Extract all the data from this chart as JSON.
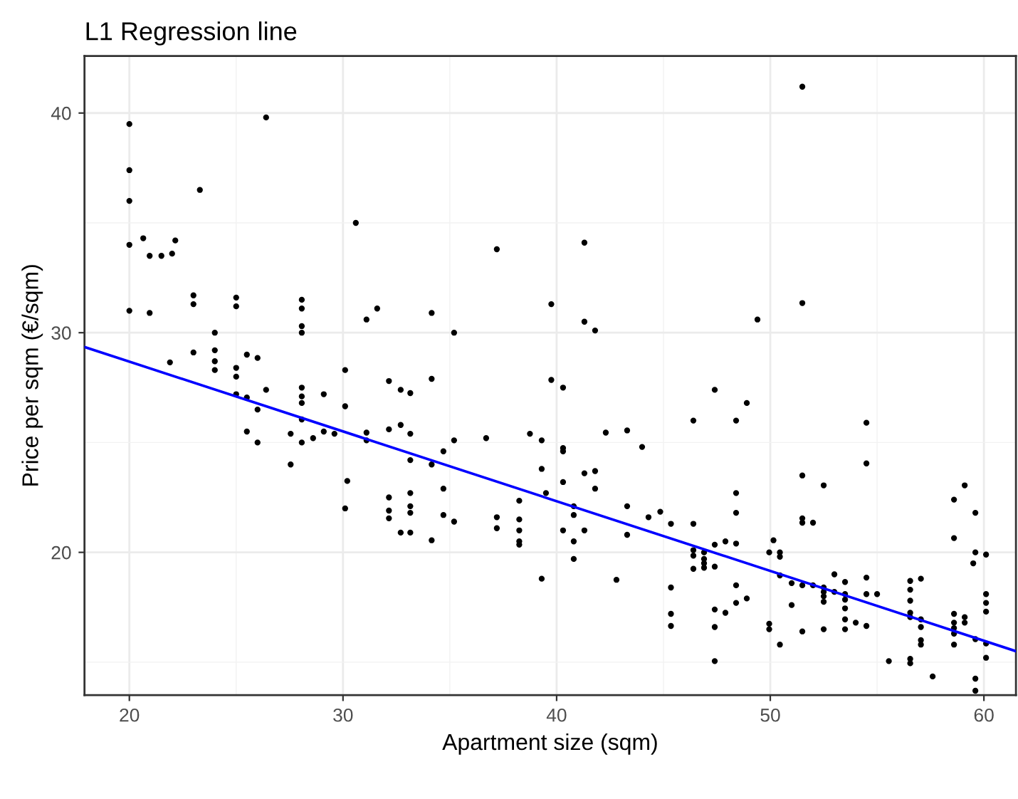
{
  "chart_data": {
    "type": "scatter",
    "title": "L1 Regression line",
    "xlabel": "Apartment size (sqm)",
    "ylabel": "Price per sqm (€/sqm)",
    "xlim": [
      17.9,
      61.5
    ],
    "ylim": [
      13.5,
      42.6
    ],
    "xticks": [
      20,
      30,
      40,
      50,
      60
    ],
    "yticks": [
      20,
      30,
      40
    ],
    "grid": true,
    "series": [
      {
        "marker": "circle",
        "color": "#000000",
        "x": [
          20,
          20,
          20,
          20,
          20,
          20.65,
          20.95,
          20.95,
          21.5,
          22.0,
          22.15,
          21.9,
          23.0,
          23.0,
          23.0,
          23.3,
          24.0,
          24.0,
          24.0,
          24.0,
          25.0,
          25.0,
          25.0,
          25.0,
          25.0,
          25.5,
          25.5,
          25.5,
          26.0,
          26.0,
          26.0,
          26.4,
          26.4,
          27.55,
          27.55,
          28.07,
          28.07,
          28.07,
          28.07,
          28.07,
          28.07,
          28.07,
          28.07,
          28.07,
          28.6,
          29.1,
          29.1,
          29.6,
          30.1,
          30.1,
          30.2,
          30.1,
          30.6,
          31.1,
          31.1,
          31.1,
          31.6,
          32.15,
          32.15,
          32.15,
          32.15,
          32.15,
          32.7,
          32.7,
          32.7,
          33.15,
          33.15,
          33.15,
          33.15,
          33.15,
          33.15,
          33.15,
          34.15,
          34.15,
          34.15,
          34.15,
          34.7,
          34.7,
          34.7,
          35.2,
          35.2,
          35.2,
          36.7,
          37.2,
          37.2,
          37.2,
          38.25,
          38.25,
          38.25,
          38.25,
          38.25,
          38.75,
          39.3,
          39.3,
          39.3,
          39.5,
          39.75,
          39.75,
          40.3,
          40.3,
          40.3,
          40.3,
          40.3,
          40.8,
          40.8,
          40.8,
          40.8,
          41.3,
          41.3,
          41.3,
          41.3,
          41.8,
          41.8,
          41.8,
          42.3,
          42.8,
          43.3,
          43.3,
          43.3,
          44.0,
          44.3,
          44.85,
          45.35,
          45.35,
          45.35,
          45.35,
          46.4,
          46.4,
          46.4,
          46.4,
          46.4,
          46.9,
          46.9,
          46.9,
          46.9,
          47.4,
          47.4,
          47.4,
          47.4,
          47.4,
          47.4,
          47.9,
          47.9,
          48.4,
          48.4,
          48.4,
          48.4,
          48.4,
          48.4,
          48.9,
          48.9,
          49.4,
          49.95,
          49.95,
          49.95,
          50.15,
          50.45,
          50.45,
          50.45,
          50.45,
          51.0,
          51.0,
          51.5,
          51.5,
          51.5,
          51.5,
          51.5,
          51.5,
          51.5,
          52.0,
          52.0,
          52.5,
          52.5,
          52.5,
          52.5,
          52.5,
          52.5,
          53.0,
          53.0,
          53.5,
          53.5,
          53.5,
          53.5,
          53.5,
          53.5,
          54.0,
          54.5,
          54.5,
          54.5,
          54.5,
          54.5,
          55.0,
          55.55,
          56.55,
          56.55,
          56.55,
          56.55,
          56.55,
          56.55,
          56.55,
          57.05,
          57.05,
          57.05,
          57.05,
          57.05,
          57.6,
          58.6,
          58.6,
          58.6,
          58.6,
          58.6,
          58.6,
          58.6,
          59.1,
          59.1,
          59.1,
          59.5,
          59.6,
          59.6,
          59.6,
          59.6,
          59.6,
          60.1,
          60.1,
          60.1,
          60.1,
          60.1,
          60.1
        ],
        "values": [
          39.5,
          37.4,
          36.0,
          34.0,
          31.0,
          34.3,
          33.5,
          30.9,
          33.5,
          33.6,
          34.2,
          28.65,
          31.7,
          31.3,
          29.1,
          36.5,
          30.0,
          29.2,
          28.7,
          28.3,
          31.6,
          31.2,
          28.4,
          28.0,
          27.2,
          29.0,
          27.05,
          25.5,
          28.85,
          26.5,
          25.0,
          27.4,
          39.8,
          25.4,
          24.0,
          31.5,
          31.1,
          30.3,
          30.0,
          27.5,
          27.1,
          26.8,
          26.05,
          25.0,
          25.2,
          27.2,
          25.5,
          25.4,
          28.3,
          26.65,
          23.25,
          22.0,
          35.0,
          30.6,
          25.45,
          25.1,
          31.1,
          27.8,
          25.6,
          22.5,
          21.9,
          21.55,
          27.4,
          25.8,
          20.9,
          27.25,
          25.4,
          24.2,
          22.7,
          22.1,
          21.8,
          20.9,
          30.9,
          27.9,
          24.0,
          20.55,
          24.6,
          22.9,
          21.7,
          30.0,
          25.1,
          21.4,
          25.2,
          33.8,
          21.6,
          21.1,
          22.35,
          21.5,
          21.0,
          20.5,
          20.35,
          25.4,
          25.1,
          23.8,
          18.8,
          22.7,
          31.3,
          27.85,
          27.5,
          24.75,
          24.6,
          23.2,
          21.0,
          22.1,
          21.7,
          20.5,
          19.7,
          34.1,
          30.5,
          23.6,
          21.0,
          30.1,
          23.7,
          22.9,
          25.45,
          18.75,
          25.55,
          22.1,
          20.8,
          24.8,
          21.6,
          21.85,
          21.3,
          18.4,
          17.2,
          16.65,
          26.0,
          21.3,
          20.1,
          19.85,
          19.25,
          20.0,
          19.7,
          19.5,
          19.3,
          27.4,
          20.35,
          19.35,
          17.4,
          16.6,
          15.05,
          20.5,
          17.25,
          26.0,
          22.7,
          21.8,
          20.4,
          18.5,
          17.7,
          26.8,
          17.9,
          30.6,
          20.0,
          16.75,
          16.5,
          20.55,
          20.0,
          19.8,
          18.95,
          15.8,
          18.6,
          17.6,
          41.2,
          31.35,
          23.5,
          21.55,
          21.35,
          18.5,
          16.4,
          21.35,
          18.5,
          23.05,
          18.4,
          18.2,
          18.0,
          17.75,
          16.5,
          19.0,
          18.2,
          18.65,
          18.1,
          17.85,
          17.45,
          16.95,
          16.5,
          16.8,
          25.9,
          24.05,
          18.85,
          18.1,
          16.65,
          18.1,
          15.05,
          18.7,
          18.3,
          17.8,
          17.25,
          17.05,
          15.15,
          14.95,
          18.8,
          16.95,
          16.6,
          16.0,
          15.8,
          14.35,
          22.4,
          20.65,
          17.2,
          16.8,
          16.55,
          16.3,
          15.8,
          23.05,
          17.05,
          16.8,
          19.5,
          21.8,
          20.0,
          16.05,
          14.25,
          13.7,
          19.9,
          18.1,
          17.7,
          17.3,
          15.85,
          15.2
        ]
      },
      {
        "type": "line",
        "color": "#0000ff",
        "x": [
          17.9,
          61.5
        ],
        "values": [
          29.35,
          15.5
        ]
      }
    ]
  }
}
